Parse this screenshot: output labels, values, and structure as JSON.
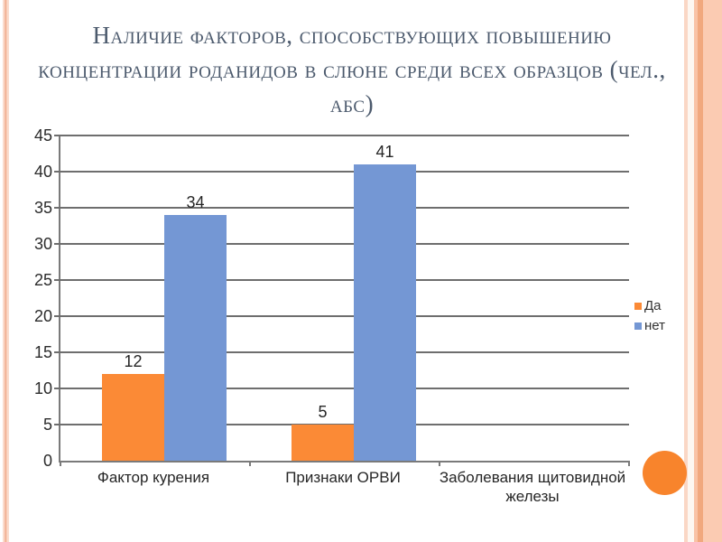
{
  "slide": {
    "title": "Наличие факторов, способствующих повышению концентрации роданидов в слюне среди всех образцов (чел., абс)"
  },
  "chart_data": {
    "type": "bar",
    "categories": [
      "Фактор курения",
      "Признаки ОРВИ",
      "Заболевания щитовидной железы"
    ],
    "series": [
      {
        "name": "Да",
        "color": "#fb8a36",
        "values": [
          12,
          5,
          null
        ]
      },
      {
        "name": "нет",
        "color": "#7497d4",
        "values": [
          34,
          41,
          null
        ]
      }
    ],
    "title": "",
    "xlabel": "",
    "ylabel": "",
    "ylim": [
      0,
      45
    ],
    "ytick_step": 5,
    "grid": true,
    "legend_position": "right"
  },
  "decor": {
    "circle_color": "#f8842c",
    "stripe_peach_light": "#fbdccd",
    "stripe_peach_dark": "#f1a87e"
  }
}
